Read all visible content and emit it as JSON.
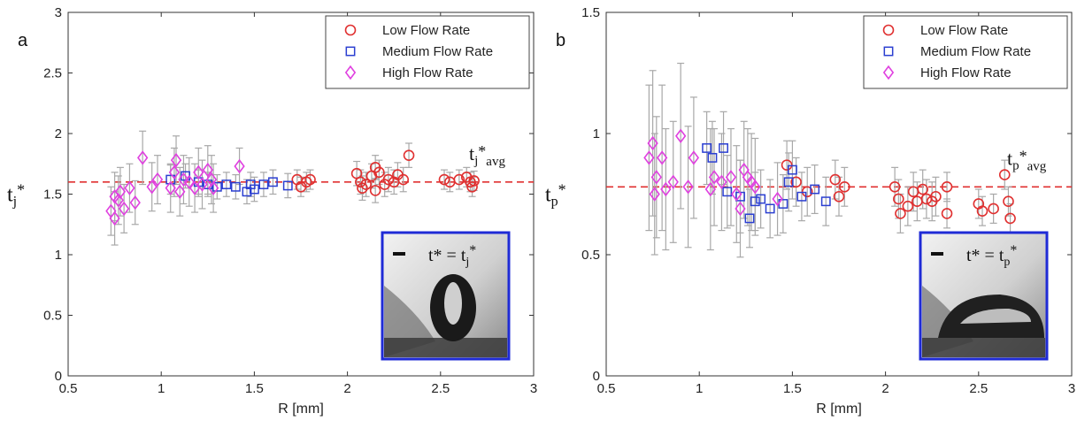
{
  "chart_data": [
    {
      "type": "scatter",
      "panel_label": "a",
      "ylabel": "t",
      "ylabel_sub": "j",
      "ylabel_sup": "*",
      "xlabel": "R [mm]",
      "xlim": [
        0.5,
        3
      ],
      "ylim": [
        0,
        3
      ],
      "xticks": [
        "0.5",
        "1",
        "1.5",
        "2",
        "2.5",
        "3"
      ],
      "yticks": [
        "0",
        "0.5",
        "1",
        "1.5",
        "2",
        "2.5",
        "3"
      ],
      "legend_position": "top-right",
      "avg_line": 1.6,
      "avg_label": {
        "base": "t",
        "sub": "j",
        "sup": "*",
        "sub2": "avg"
      },
      "inset_label": {
        "lhs": "t* = t",
        "sub": "j",
        "sup": "*"
      },
      "series": [
        {
          "name": "Low Flow Rate",
          "marker": "circle",
          "color": "#e03030",
          "points": [
            [
              1.73,
              1.62,
              0.08
            ],
            [
              1.75,
              1.56,
              0.08
            ],
            [
              1.78,
              1.6,
              0.08
            ],
            [
              1.8,
              1.62,
              0.08
            ],
            [
              2.05,
              1.67,
              0.1
            ],
            [
              2.07,
              1.6,
              0.1
            ],
            [
              2.08,
              1.55,
              0.1
            ],
            [
              2.1,
              1.58,
              0.1
            ],
            [
              2.13,
              1.65,
              0.1
            ],
            [
              2.15,
              1.72,
              0.1
            ],
            [
              2.17,
              1.68,
              0.1
            ],
            [
              2.15,
              1.53,
              0.1
            ],
            [
              2.2,
              1.58,
              0.1
            ],
            [
              2.22,
              1.62,
              0.1
            ],
            [
              2.25,
              1.6,
              0.1
            ],
            [
              2.27,
              1.66,
              0.1
            ],
            [
              2.3,
              1.62,
              0.1
            ],
            [
              2.33,
              1.82,
              0.1
            ],
            [
              2.52,
              1.62,
              0.08
            ],
            [
              2.55,
              1.6,
              0.08
            ],
            [
              2.6,
              1.62,
              0.08
            ],
            [
              2.64,
              1.64,
              0.08
            ],
            [
              2.66,
              1.6,
              0.08
            ],
            [
              2.67,
              1.56,
              0.08
            ],
            [
              2.68,
              1.61,
              0.08
            ]
          ]
        },
        {
          "name": "Medium Flow Rate",
          "marker": "square",
          "color": "#2b3fd1",
          "points": [
            [
              1.05,
              1.62,
              0.12
            ],
            [
              1.13,
              1.65,
              0.1
            ],
            [
              1.2,
              1.6,
              0.1
            ],
            [
              1.25,
              1.58,
              0.1
            ],
            [
              1.3,
              1.56,
              0.1
            ],
            [
              1.35,
              1.58,
              0.1
            ],
            [
              1.4,
              1.56,
              0.1
            ],
            [
              1.46,
              1.52,
              0.1
            ],
            [
              1.48,
              1.58,
              0.1
            ],
            [
              1.5,
              1.54,
              0.1
            ],
            [
              1.55,
              1.58,
              0.1
            ],
            [
              1.6,
              1.6,
              0.1
            ],
            [
              1.68,
              1.57,
              0.1
            ]
          ]
        },
        {
          "name": "High Flow Rate",
          "marker": "diamond",
          "color": "#e040e0",
          "points": [
            [
              0.73,
              1.36,
              0.2
            ],
            [
              0.75,
              1.3,
              0.22
            ],
            [
              0.75,
              1.48,
              0.2
            ],
            [
              0.77,
              1.45,
              0.2
            ],
            [
              0.78,
              1.52,
              0.2
            ],
            [
              0.8,
              1.38,
              0.2
            ],
            [
              0.83,
              1.55,
              0.2
            ],
            [
              0.86,
              1.43,
              0.18
            ],
            [
              0.9,
              1.8,
              0.22
            ],
            [
              0.95,
              1.56,
              0.2
            ],
            [
              0.98,
              1.62,
              0.2
            ],
            [
              1.05,
              1.55,
              0.2
            ],
            [
              1.07,
              1.68,
              0.2
            ],
            [
              1.08,
              1.78,
              0.2
            ],
            [
              1.1,
              1.52,
              0.2
            ],
            [
              1.12,
              1.62,
              0.2
            ],
            [
              1.15,
              1.6,
              0.2
            ],
            [
              1.18,
              1.55,
              0.2
            ],
            [
              1.2,
              1.68,
              0.2
            ],
            [
              1.22,
              1.58,
              0.2
            ],
            [
              1.25,
              1.7,
              0.2
            ],
            [
              1.27,
              1.62,
              0.2
            ],
            [
              1.28,
              1.55,
              0.2
            ],
            [
              1.42,
              1.73,
              0.15
            ]
          ]
        }
      ]
    },
    {
      "type": "scatter",
      "panel_label": "b",
      "ylabel": "t",
      "ylabel_sub": "p",
      "ylabel_sup": "*",
      "xlabel": "R [mm]",
      "xlim": [
        0.5,
        3
      ],
      "ylim": [
        0,
        1.5
      ],
      "xticks": [
        "0.5",
        "1",
        "1.5",
        "2",
        "2.5",
        "3"
      ],
      "yticks": [
        "0",
        "0.5",
        "1",
        "1.5"
      ],
      "legend_position": "top-right",
      "avg_line": 0.78,
      "avg_label": {
        "base": "t",
        "sub": "p",
        "sup": "*",
        "sub2": "avg"
      },
      "inset_label": {
        "lhs": "t* = t",
        "sub": "p",
        "sup": "*"
      },
      "series": [
        {
          "name": "Low Flow Rate",
          "marker": "circle",
          "color": "#e03030",
          "points": [
            [
              1.47,
              0.87,
              0.1
            ],
            [
              1.52,
              0.8,
              0.1
            ],
            [
              1.58,
              0.76,
              0.1
            ],
            [
              1.73,
              0.81,
              0.08
            ],
            [
              1.75,
              0.74,
              0.08
            ],
            [
              1.78,
              0.78,
              0.08
            ],
            [
              2.05,
              0.78,
              0.08
            ],
            [
              2.07,
              0.73,
              0.08
            ],
            [
              2.08,
              0.67,
              0.08
            ],
            [
              2.12,
              0.7,
              0.08
            ],
            [
              2.15,
              0.76,
              0.08
            ],
            [
              2.17,
              0.72,
              0.08
            ],
            [
              2.2,
              0.77,
              0.08
            ],
            [
              2.22,
              0.73,
              0.08
            ],
            [
              2.25,
              0.72,
              0.08
            ],
            [
              2.27,
              0.74,
              0.08
            ],
            [
              2.33,
              0.78,
              0.06
            ],
            [
              2.33,
              0.67,
              0.06
            ],
            [
              2.5,
              0.71,
              0.06
            ],
            [
              2.52,
              0.68,
              0.06
            ],
            [
              2.58,
              0.69,
              0.06
            ],
            [
              2.64,
              0.83,
              0.06
            ],
            [
              2.66,
              0.72,
              0.06
            ],
            [
              2.67,
              0.65,
              0.06
            ]
          ]
        },
        {
          "name": "Medium Flow Rate",
          "marker": "square",
          "color": "#2b3fd1",
          "points": [
            [
              1.04,
              0.94,
              0.15
            ],
            [
              1.07,
              0.9,
              0.15
            ],
            [
              1.13,
              0.94,
              0.15
            ],
            [
              1.15,
              0.76,
              0.15
            ],
            [
              1.22,
              0.74,
              0.15
            ],
            [
              1.27,
              0.65,
              0.12
            ],
            [
              1.3,
              0.72,
              0.12
            ],
            [
              1.33,
              0.73,
              0.12
            ],
            [
              1.38,
              0.69,
              0.12
            ],
            [
              1.45,
              0.71,
              0.12
            ],
            [
              1.48,
              0.8,
              0.12
            ],
            [
              1.5,
              0.85,
              0.12
            ],
            [
              1.55,
              0.74,
              0.1
            ],
            [
              1.62,
              0.77,
              0.1
            ],
            [
              1.68,
              0.72,
              0.1
            ]
          ]
        },
        {
          "name": "High Flow Rate",
          "marker": "diamond",
          "color": "#e040e0",
          "points": [
            [
              0.73,
              0.9,
              0.3
            ],
            [
              0.75,
              0.96,
              0.3
            ],
            [
              0.76,
              0.75,
              0.25
            ],
            [
              0.77,
              0.82,
              0.25
            ],
            [
              0.8,
              0.9,
              0.3
            ],
            [
              0.82,
              0.77,
              0.25
            ],
            [
              0.86,
              0.8,
              0.25
            ],
            [
              0.9,
              0.99,
              0.3
            ],
            [
              0.94,
              0.78,
              0.25
            ],
            [
              0.97,
              0.9,
              0.25
            ],
            [
              1.06,
              0.77,
              0.25
            ],
            [
              1.08,
              0.82,
              0.2
            ],
            [
              1.12,
              0.8,
              0.2
            ],
            [
              1.17,
              0.82,
              0.2
            ],
            [
              1.2,
              0.75,
              0.2
            ],
            [
              1.22,
              0.69,
              0.2
            ],
            [
              1.24,
              0.85,
              0.2
            ],
            [
              1.26,
              0.82,
              0.2
            ],
            [
              1.28,
              0.8,
              0.2
            ],
            [
              1.3,
              0.78,
              0.2
            ],
            [
              1.42,
              0.73,
              0.15
            ]
          ]
        }
      ]
    }
  ]
}
